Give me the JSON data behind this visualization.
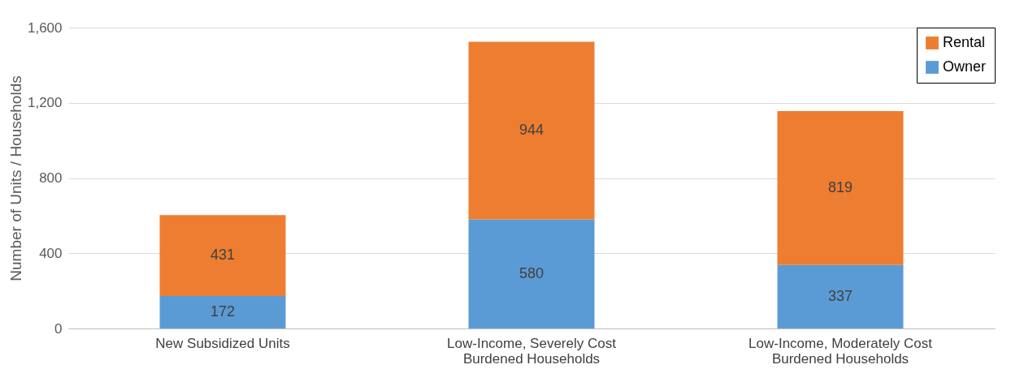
{
  "chart_data": {
    "type": "bar",
    "stacked": true,
    "ylabel": "Number of Units / Households",
    "categories": [
      "New Subsidized Units",
      "Low-Income, Severely Cost Burdened Households",
      "Low-Income, Moderately Cost Burdened Households"
    ],
    "series": [
      {
        "name": "Owner",
        "color": "#5b9bd5",
        "values": [
          172,
          580,
          337
        ]
      },
      {
        "name": "Rental",
        "color": "#ed7d31",
        "values": [
          431,
          944,
          819
        ]
      }
    ],
    "ylim": [
      0,
      1600
    ],
    "yticks": [
      0,
      400,
      800,
      {
        "value": 1200,
        "label": "1,200"
      },
      {
        "value": 1600,
        "label": "1,600"
      }
    ],
    "grid": "y",
    "legend": "top right",
    "data_labels": true
  }
}
